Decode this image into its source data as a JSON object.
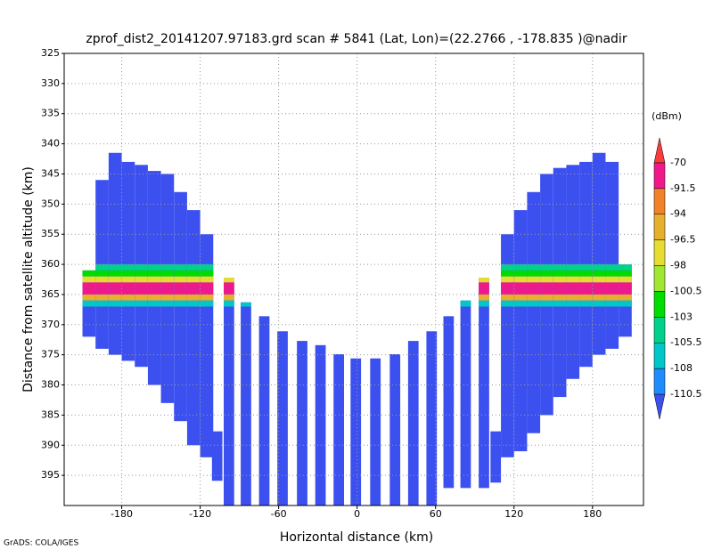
{
  "chart_data": {
    "type": "profile",
    "title": "zprof_dist2_20141207.97183.grd  scan # 5841  (Lat, Lon)=(22.2766 , -178.835 )@nadir",
    "xlabel": "Horizontal distance (km)",
    "ylabel": "Distance from satellite altitude (km)",
    "colorbar_label": "(dBm)",
    "footer": "GrADS: COLA/IGES",
    "xlim": [
      -224,
      219
    ],
    "ylim": [
      400,
      325
    ],
    "xticks": [
      -180,
      -120,
      -60,
      0,
      60,
      120,
      180
    ],
    "yticks": [
      325,
      330,
      335,
      340,
      345,
      350,
      355,
      360,
      365,
      370,
      375,
      380,
      385,
      390,
      395
    ],
    "grid": true,
    "levels": [
      -110.5,
      -108,
      -105.5,
      -103,
      -100.5,
      -98,
      -96.5,
      -94,
      -91.5,
      -70
    ],
    "colors": [
      "#3c50f0",
      "#1e8cff",
      "#00c8c8",
      "#00d28c",
      "#00dc00",
      "#a0e632",
      "#e6dc32",
      "#e6af2d",
      "#f08228",
      "#f0198c",
      "#fa3c3c"
    ],
    "base_value": -115,
    "columns": {
      "x": [
        -205,
        -195,
        -185,
        -175,
        -165,
        -155,
        -145,
        -135,
        -125,
        -115,
        -107,
        -98,
        -85,
        -71,
        -57,
        -42,
        -28,
        -14,
        -1,
        14,
        29,
        43,
        57,
        70,
        83,
        97,
        106,
        115,
        125,
        135,
        145,
        155,
        165,
        175,
        185,
        195,
        205
      ],
      "top": [
        361,
        346,
        341.5,
        343,
        343.5,
        344.5,
        345,
        348,
        351,
        355,
        387.7,
        362.2,
        366.3,
        368.6,
        371.1,
        372.7,
        373.4,
        374.9,
        375.6,
        375.6,
        374.9,
        372.7,
        371.1,
        368.6,
        366,
        362.2,
        387.7,
        355,
        351,
        348,
        345,
        344,
        343.5,
        343,
        341.5,
        343,
        360
      ],
      "bottom": [
        372,
        374,
        375,
        376,
        377,
        380,
        383,
        386,
        390,
        392,
        395.9,
        400,
        400,
        400,
        400,
        400,
        400,
        400,
        400,
        400,
        400,
        400,
        400,
        397.1,
        397.1,
        397.1,
        396.2,
        392,
        391,
        388,
        385,
        382,
        379,
        377,
        375,
        374,
        372
      ],
      "width": [
        10,
        10,
        10,
        10,
        10,
        10,
        10,
        10,
        10,
        10,
        8,
        8,
        8,
        8,
        8,
        8,
        8,
        8,
        8,
        8,
        8,
        8,
        8,
        8,
        8,
        8,
        8,
        10,
        10,
        10,
        10,
        10,
        10,
        10,
        10,
        10,
        10
      ]
    },
    "bright_band": {
      "alts": [
        360.5,
        361.5,
        362.5,
        363.5,
        364.5,
        365.5,
        366.5
      ],
      "values": [
        -104,
        -101,
        -97,
        -88,
        -85,
        -95,
        -106
      ]
    }
  }
}
